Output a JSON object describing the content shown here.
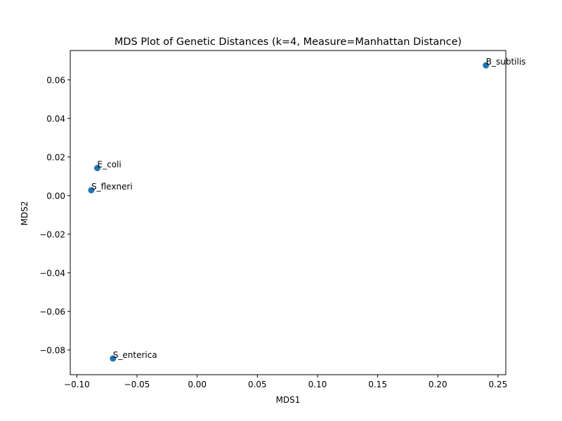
{
  "chart_data": {
    "type": "scatter",
    "title": "MDS Plot of Genetic Distances (k=4, Measure=Manhattan Distance)",
    "xlabel": "MDS1",
    "ylabel": "MDS2",
    "xlim": [
      -0.1055,
      0.2565
    ],
    "ylim": [
      -0.0928,
      0.0752
    ],
    "xticks": [
      -0.1,
      -0.05,
      0.0,
      0.05,
      0.1,
      0.15,
      0.2,
      0.25
    ],
    "xtick_labels": [
      "−0.10",
      "−0.05",
      "0.00",
      "0.05",
      "0.10",
      "0.15",
      "0.20",
      "0.25"
    ],
    "yticks": [
      -0.08,
      -0.06,
      -0.04,
      -0.02,
      0.0,
      0.02,
      0.04,
      0.06
    ],
    "ytick_labels": [
      "−0.08",
      "−0.06",
      "−0.04",
      "−0.02",
      "0.00",
      "0.02",
      "0.04",
      "0.06"
    ],
    "grid": false,
    "marker_color": "#1f77b4",
    "points": [
      {
        "label": "B_subtilis",
        "x": 0.24,
        "y": 0.0675
      },
      {
        "label": "E_coli",
        "x": -0.083,
        "y": 0.0143
      },
      {
        "label": "S_flexneri",
        "x": -0.088,
        "y": 0.0028
      },
      {
        "label": "S_enterica",
        "x": -0.07,
        "y": -0.0844
      }
    ]
  }
}
